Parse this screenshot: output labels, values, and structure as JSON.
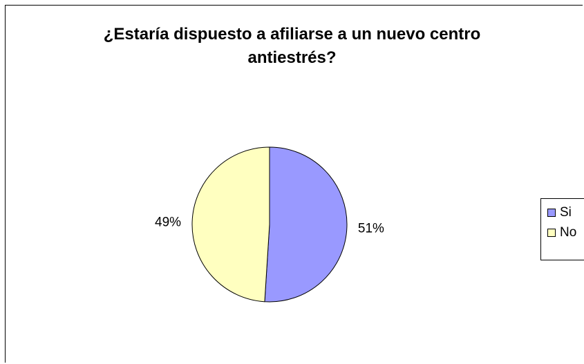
{
  "chart_data": {
    "type": "pie",
    "title_lines": [
      "¿Estaría dispuesto a afiliarse a un nuevo centro",
      "antiestrés?"
    ],
    "categories": [
      "Si",
      "No"
    ],
    "values": [
      51,
      49
    ],
    "labels": [
      "51%",
      "49%"
    ],
    "colors": [
      "#9999ff",
      "#ffffc0"
    ],
    "legend_position": "right"
  }
}
